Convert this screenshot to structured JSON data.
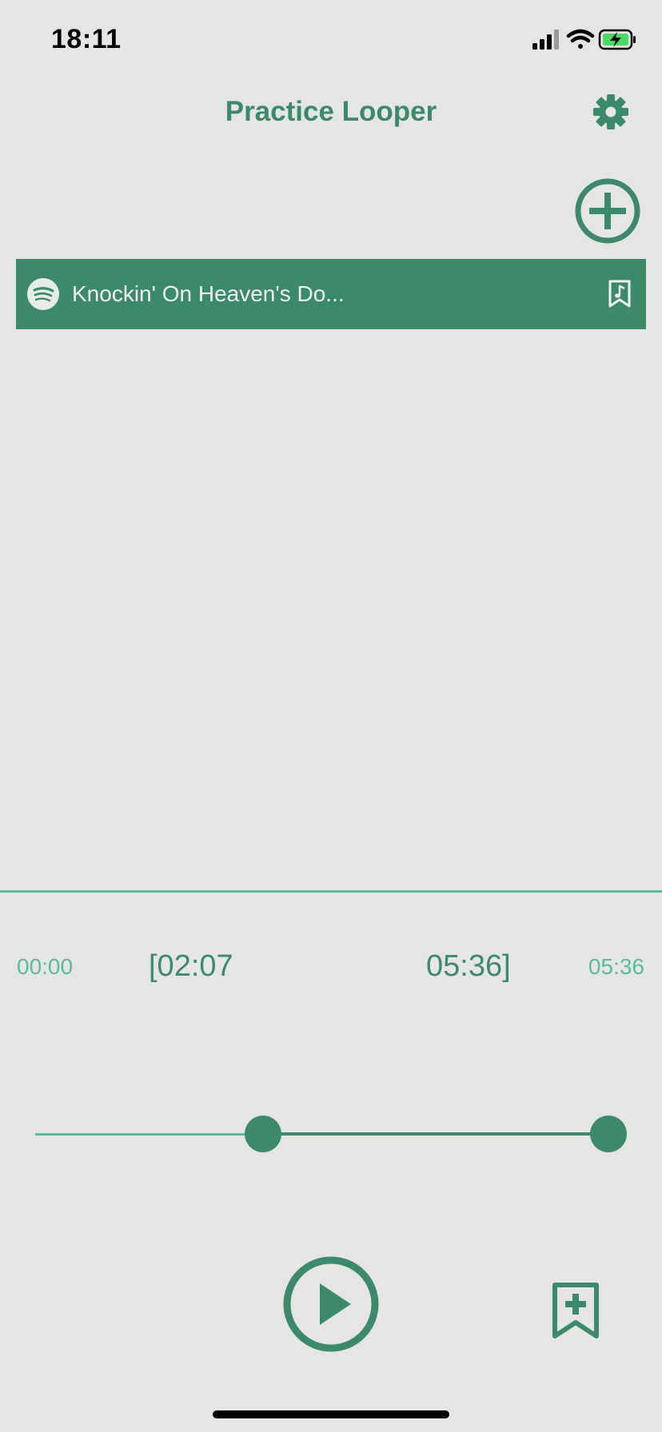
{
  "status_bar": {
    "time": "18:11",
    "icons": [
      "cellular-signal-icon",
      "wifi-icon",
      "battery-charging-icon"
    ]
  },
  "header": {
    "title": "Practice Looper",
    "settings_icon": "gear-icon"
  },
  "toolbar": {
    "add_icon": "plus-circle-icon"
  },
  "songs": [
    {
      "source_icon": "spotify-icon",
      "title": "Knockin' On Heaven's Do...",
      "action_icon": "music-bookmark-icon"
    }
  ],
  "player": {
    "time_start": "00:00",
    "loop_start": "[02:07",
    "loop_end": "05:36]",
    "time_end": "05:36",
    "loop_start_fraction": 0.378,
    "loop_end_fraction": 1.0
  },
  "controls": {
    "play_icon": "play-circle-icon",
    "add_bookmark_icon": "bookmark-plus-icon"
  },
  "colors": {
    "accent": "#3d8a6b",
    "accent_light": "#5bbc99",
    "background": "#e5e5e5"
  }
}
